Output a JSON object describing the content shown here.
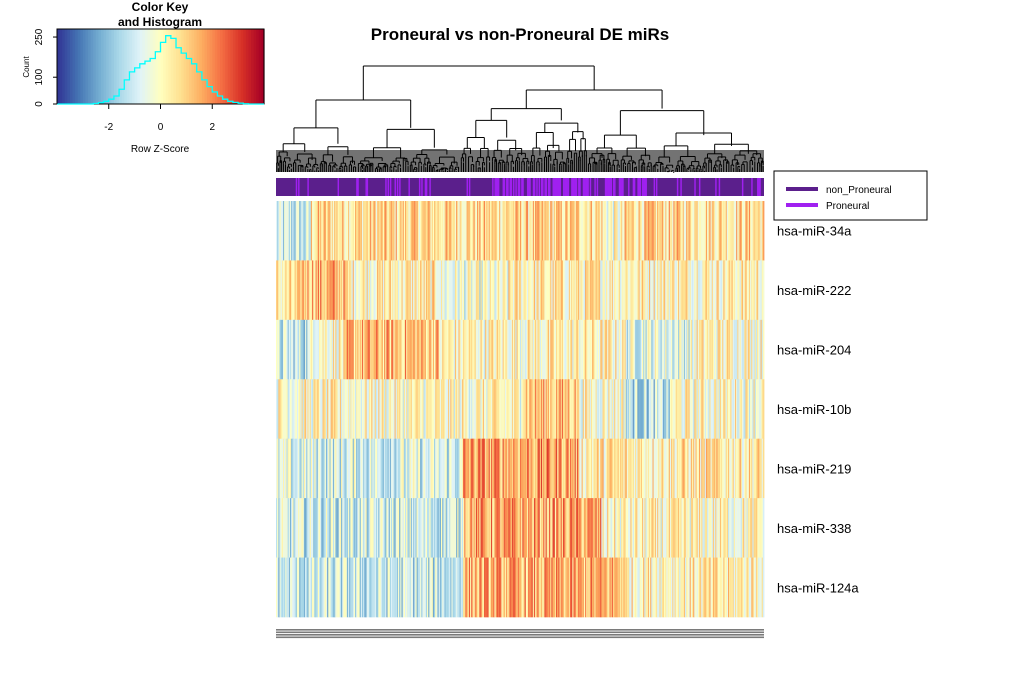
{
  "chart_data": {
    "type": "heatmap",
    "title": "Proneural vs non-Proneural DE miRs",
    "rows": [
      "hsa-miR-34a",
      "hsa-miR-222",
      "hsa-miR-204",
      "hsa-miR-10b",
      "hsa-miR-219",
      "hsa-miR-338",
      "hsa-miR-124a"
    ],
    "color_scale": [
      "#313695",
      "#4575b4",
      "#74add1",
      "#abd9e9",
      "#e0f3f8",
      "#ffffbf",
      "#fee090",
      "#fdae61",
      "#f46d43",
      "#d73027",
      "#a50026"
    ],
    "color_key": {
      "title_line1": "Color Key",
      "title_line2": "and Histogram",
      "xlabel": "Row Z-Score",
      "ylabel": "Count",
      "x_ticks": [
        "-2",
        "0",
        "2"
      ],
      "y_ticks": [
        "0",
        "100",
        "250"
      ],
      "x_range": [
        -4,
        4
      ],
      "histogram_color": "#00ffff",
      "histogram_counts": [
        0,
        0,
        0,
        0,
        0,
        0,
        0,
        2,
        5,
        10,
        18,
        30,
        55,
        90,
        120,
        135,
        150,
        160,
        170,
        195,
        230,
        255,
        245,
        210,
        190,
        170,
        150,
        120,
        90,
        65,
        45,
        30,
        18,
        10,
        6,
        3,
        1,
        0,
        0,
        0
      ]
    },
    "legend": {
      "placement": "right",
      "items": [
        {
          "label": "non_Proneural",
          "color": "#5b1f8c"
        },
        {
          "label": "Proneural",
          "color": "#a020f0"
        }
      ]
    }
  }
}
